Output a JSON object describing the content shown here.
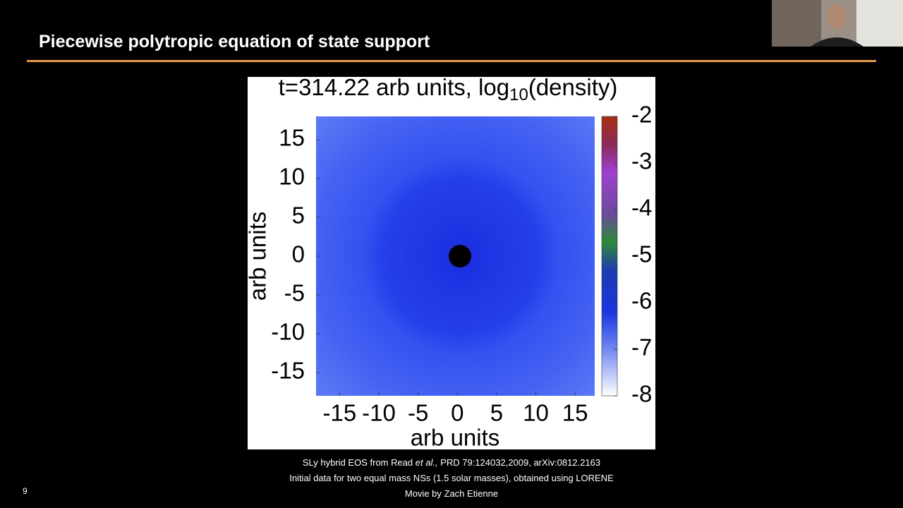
{
  "slide": {
    "title": "Piecewise polytropic equation of state support",
    "page_number": "9"
  },
  "figure": {
    "title_parts": [
      "t=314.22 arb units, log",
      "10",
      "(density)"
    ],
    "xlabel": "arb units",
    "ylabel": "arb units",
    "xlim": [
      -18,
      17.5
    ],
    "ylim": [
      -18,
      18
    ],
    "xticks": [
      -15,
      -10,
      -5,
      0,
      5,
      10,
      15
    ],
    "yticks": [
      -15,
      -10,
      -5,
      0,
      5,
      10,
      15
    ],
    "clim": [
      -8,
      -2
    ],
    "cticks": [
      -2,
      -3,
      -4,
      -5,
      -6,
      -7,
      -8
    ]
  },
  "captions": {
    "line1": [
      "SLy hybrid EOS from Read ",
      "et al.,",
      " PRD 79:124032,2009, arXiv:0812.2163"
    ],
    "line2": "Initial data for two equal mass NSs (1.5 solar masses), obtained using LORENE",
    "line3": "Movie by Zach Etienne"
  }
}
